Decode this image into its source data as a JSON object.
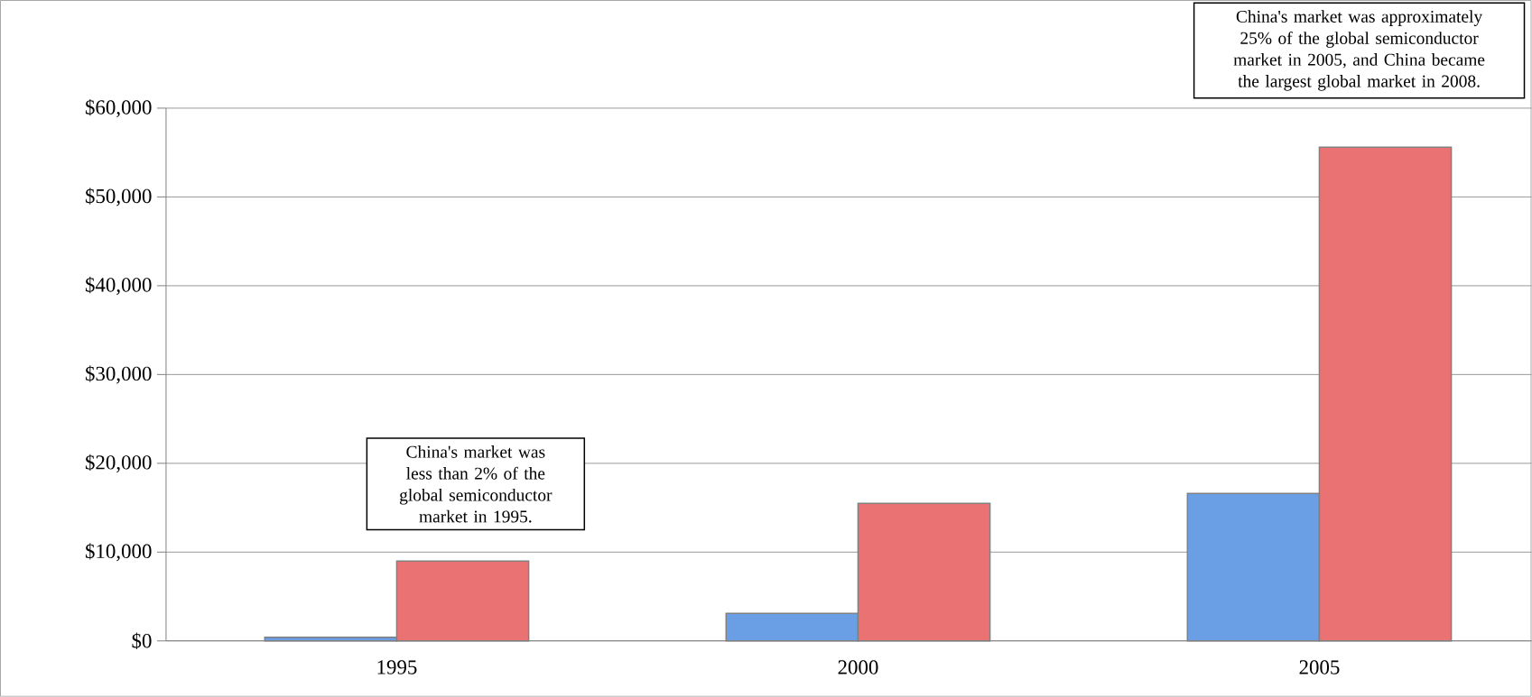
{
  "chart_data": {
    "type": "bar",
    "categories": [
      "1995",
      "2000",
      "2005"
    ],
    "series": [
      {
        "color": "#6a9fe6",
        "values": [
          400,
          3100,
          16600
        ]
      },
      {
        "color": "#ea7272",
        "values": [
          9000,
          15500,
          55600
        ]
      }
    ],
    "ylim": [
      0,
      60000
    ],
    "yticks": [
      {
        "value": 0,
        "label": "$0"
      },
      {
        "value": 10000,
        "label": "$10,000"
      },
      {
        "value": 20000,
        "label": "$20,000"
      },
      {
        "value": 30000,
        "label": "$30,000"
      },
      {
        "value": 40000,
        "label": "$40,000"
      },
      {
        "value": 50000,
        "label": "$50,000"
      },
      {
        "value": 60000,
        "label": "$60,000"
      }
    ],
    "grid": "y",
    "annotations": [
      "China's market was less than 2% of the global semiconductor market in 1995.",
      "China's market was approximately 25% of the global semiconductor market in 2005, and China became the largest global market in 2008."
    ]
  }
}
